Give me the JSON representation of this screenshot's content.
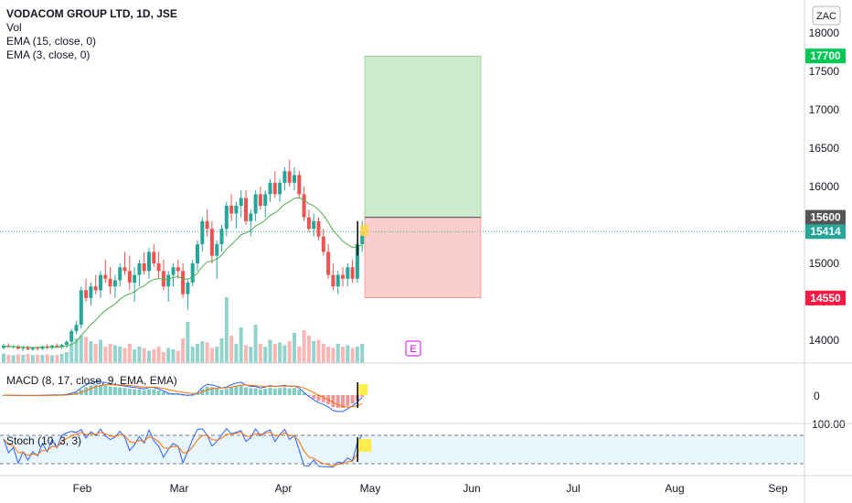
{
  "legend": {
    "title": "VODACOM GROUP LTD, 1D, JSE",
    "vol": "Vol",
    "ema15": "EMA (15, close, 0)",
    "ema3": "EMA (3, close, 0)"
  },
  "macd": {
    "label": "MACD (8, 17, close, 9, EMA, EMA)",
    "zero_label": "0"
  },
  "stoch": {
    "label": "Stoch (10, 3, 3)",
    "top_label": "100.00"
  },
  "currency": "ZAC",
  "earnings_marker": "E",
  "colors": {
    "up": "#26a69a",
    "down": "#ef5350",
    "ema15": "#4caf50",
    "macd": "#2962ff",
    "signal": "#ff6d00",
    "profit": "#c8ebc8",
    "loss": "#fbc9c9",
    "stoch_k": "#2962ff",
    "stoch_d": "#ff6d00",
    "highlight": "#ffeb3b"
  },
  "chart_data": {
    "type": "candlestick",
    "price_axis": {
      "min": 13900,
      "max": 18200,
      "ticks": [
        14000,
        14500,
        15000,
        15500,
        16000,
        16500,
        17000,
        17500,
        18000
      ]
    },
    "x_axis": {
      "labels": [
        "Feb",
        "Mar",
        "Apr",
        "May",
        "Jun",
        "Jul",
        "Aug",
        "Sep"
      ]
    },
    "position": {
      "entry": 15600,
      "target": 17700,
      "stop": 14550,
      "last": 15414
    },
    "badges": [
      {
        "value": "17700",
        "color": "#00c853",
        "price": 17700
      },
      {
        "value": "15600",
        "color": "#555555",
        "price": 15600
      },
      {
        "value": "15414",
        "color": "#26a69a",
        "price": 15414
      },
      {
        "value": "14550",
        "color": "#ff1744",
        "price": 14550
      }
    ],
    "candles": [
      [
        13900,
        13950,
        13880,
        13930
      ],
      [
        13930,
        13960,
        13900,
        13910
      ],
      [
        13910,
        13940,
        13890,
        13920
      ],
      [
        13920,
        13935,
        13880,
        13890
      ],
      [
        13890,
        13920,
        13860,
        13900
      ],
      [
        13900,
        13930,
        13870,
        13880
      ],
      [
        13880,
        13910,
        13860,
        13900
      ],
      [
        13900,
        13920,
        13870,
        13890
      ],
      [
        13890,
        13930,
        13870,
        13920
      ],
      [
        13920,
        13950,
        13880,
        13900
      ],
      [
        13900,
        13940,
        13880,
        13930
      ],
      [
        13930,
        13960,
        13900,
        13910
      ],
      [
        13910,
        13950,
        13890,
        13940
      ],
      [
        13940,
        14000,
        13900,
        13980
      ],
      [
        13980,
        14150,
        13950,
        14120
      ],
      [
        14120,
        14250,
        14080,
        14200
      ],
      [
        14200,
        14700,
        14150,
        14650
      ],
      [
        14650,
        14800,
        14500,
        14550
      ],
      [
        14550,
        14750,
        14450,
        14700
      ],
      [
        14700,
        14850,
        14600,
        14650
      ],
      [
        14650,
        14900,
        14550,
        14850
      ],
      [
        14850,
        15050,
        14750,
        14800
      ],
      [
        14800,
        14950,
        14600,
        14700
      ],
      [
        14700,
        14850,
        14550,
        14780
      ],
      [
        14780,
        15000,
        14700,
        14950
      ],
      [
        14950,
        15150,
        14850,
        14900
      ],
      [
        14900,
        15100,
        14650,
        14750
      ],
      [
        14750,
        14950,
        14500,
        14850
      ],
      [
        14850,
        15050,
        14700,
        15000
      ],
      [
        15000,
        15150,
        14850,
        14900
      ],
      [
        14900,
        15200,
        14800,
        15150
      ],
      [
        15150,
        15250,
        14950,
        15000
      ],
      [
        15000,
        15150,
        14800,
        14900
      ],
      [
        14900,
        15050,
        14650,
        14700
      ],
      [
        14700,
        14900,
        14500,
        14850
      ],
      [
        14850,
        15000,
        14700,
        14950
      ],
      [
        14950,
        15050,
        14800,
        14900
      ],
      [
        14900,
        15000,
        14550,
        14600
      ],
      [
        14600,
        14800,
        14400,
        14750
      ],
      [
        14750,
        15050,
        14700,
        15000
      ],
      [
        15000,
        15300,
        14900,
        15250
      ],
      [
        15250,
        15600,
        15150,
        15550
      ],
      [
        15550,
        15700,
        15350,
        15450
      ],
      [
        15450,
        15550,
        15000,
        15100
      ],
      [
        15100,
        15300,
        14800,
        15250
      ],
      [
        15250,
        15500,
        15150,
        15450
      ],
      [
        15450,
        15800,
        15350,
        15750
      ],
      [
        15750,
        15900,
        15550,
        15650
      ],
      [
        15650,
        15800,
        15450,
        15750
      ],
      [
        15750,
        15950,
        15600,
        15850
      ],
      [
        15850,
        15950,
        15500,
        15550
      ],
      [
        15550,
        15700,
        15350,
        15650
      ],
      [
        15650,
        15950,
        15550,
        15900
      ],
      [
        15900,
        16000,
        15700,
        15750
      ],
      [
        15750,
        15950,
        15600,
        15900
      ],
      [
        15900,
        16100,
        15800,
        16050
      ],
      [
        16050,
        16200,
        15850,
        15900
      ],
      [
        15900,
        16100,
        15800,
        16050
      ],
      [
        16050,
        16250,
        15950,
        16200
      ],
      [
        16200,
        16350,
        16000,
        16050
      ],
      [
        16050,
        16250,
        15950,
        16150
      ],
      [
        16150,
        16200,
        15850,
        15900
      ],
      [
        15900,
        16000,
        15550,
        15600
      ],
      [
        15600,
        15700,
        15400,
        15450
      ],
      [
        15450,
        15650,
        15350,
        15550
      ],
      [
        15550,
        15600,
        15300,
        15350
      ],
      [
        15350,
        15450,
        15100,
        15150
      ],
      [
        15150,
        15250,
        14800,
        14850
      ],
      [
        14850,
        15000,
        14650,
        14700
      ],
      [
        14700,
        14900,
        14600,
        14850
      ],
      [
        14850,
        14950,
        14700,
        14800
      ],
      [
        14800,
        15000,
        14700,
        14950
      ],
      [
        14950,
        15050,
        14750,
        14800
      ],
      [
        14800,
        15300,
        14750,
        15250
      ],
      [
        15250,
        15550,
        15150,
        15414
      ]
    ],
    "ema15": [
      13920,
      13918,
      13917,
      13913,
      13912,
      13908,
      13907,
      13905,
      13907,
      13906,
      13909,
      13909,
      13913,
      13921,
      13946,
      13978,
      14062,
      14130,
      14202,
      14258,
      14332,
      14391,
      14430,
      14474,
      14533,
      14579,
      14601,
      14632,
      14678,
      14706,
      14761,
      14791,
      14804,
      14791,
      14798,
      14817,
      14828,
      14800,
      14794,
      14820,
      14874,
      14959,
      15020,
      15030,
      15057,
      15106,
      15187,
      15245,
      15307,
      15374,
      15396,
      15427,
      15486,
      15519,
      15565,
      15625,
      15660,
      15709,
      15770,
      15805,
      15848,
      15855,
      15823,
      15777,
      15749,
      15698,
      15629,
      15532,
      15429,
      15357,
      15288,
      15245,
      15208,
      15213,
      15238
    ],
    "volume": [
      0.35,
      0.3,
      0.28,
      0.32,
      0.3,
      0.33,
      0.29,
      0.31,
      0.3,
      0.32,
      0.28,
      0.3,
      0.34,
      0.4,
      0.7,
      0.9,
      1,
      0.95,
      0.8,
      0.7,
      0.85,
      0.6,
      0.7,
      0.65,
      0.6,
      0.55,
      0.7,
      0.5,
      0.6,
      0.55,
      0.45,
      0.5,
      0.6,
      0.4,
      0.55,
      0.5,
      0.45,
      0.9,
      1.5,
      0.6,
      0.7,
      0.8,
      0.75,
      0.55,
      0.6,
      0.9,
      2.4,
      1.0,
      0.7,
      1.3,
      0.65,
      0.6,
      1.4,
      0.7,
      0.6,
      0.85,
      0.7,
      0.75,
      0.65,
      0.8,
      1.1,
      0.6,
      1.2,
      1.0,
      0.8,
      0.85,
      0.7,
      0.6,
      0.55,
      0.7,
      0.6,
      0.65,
      0.55,
      0.6,
      0.7
    ]
  }
}
